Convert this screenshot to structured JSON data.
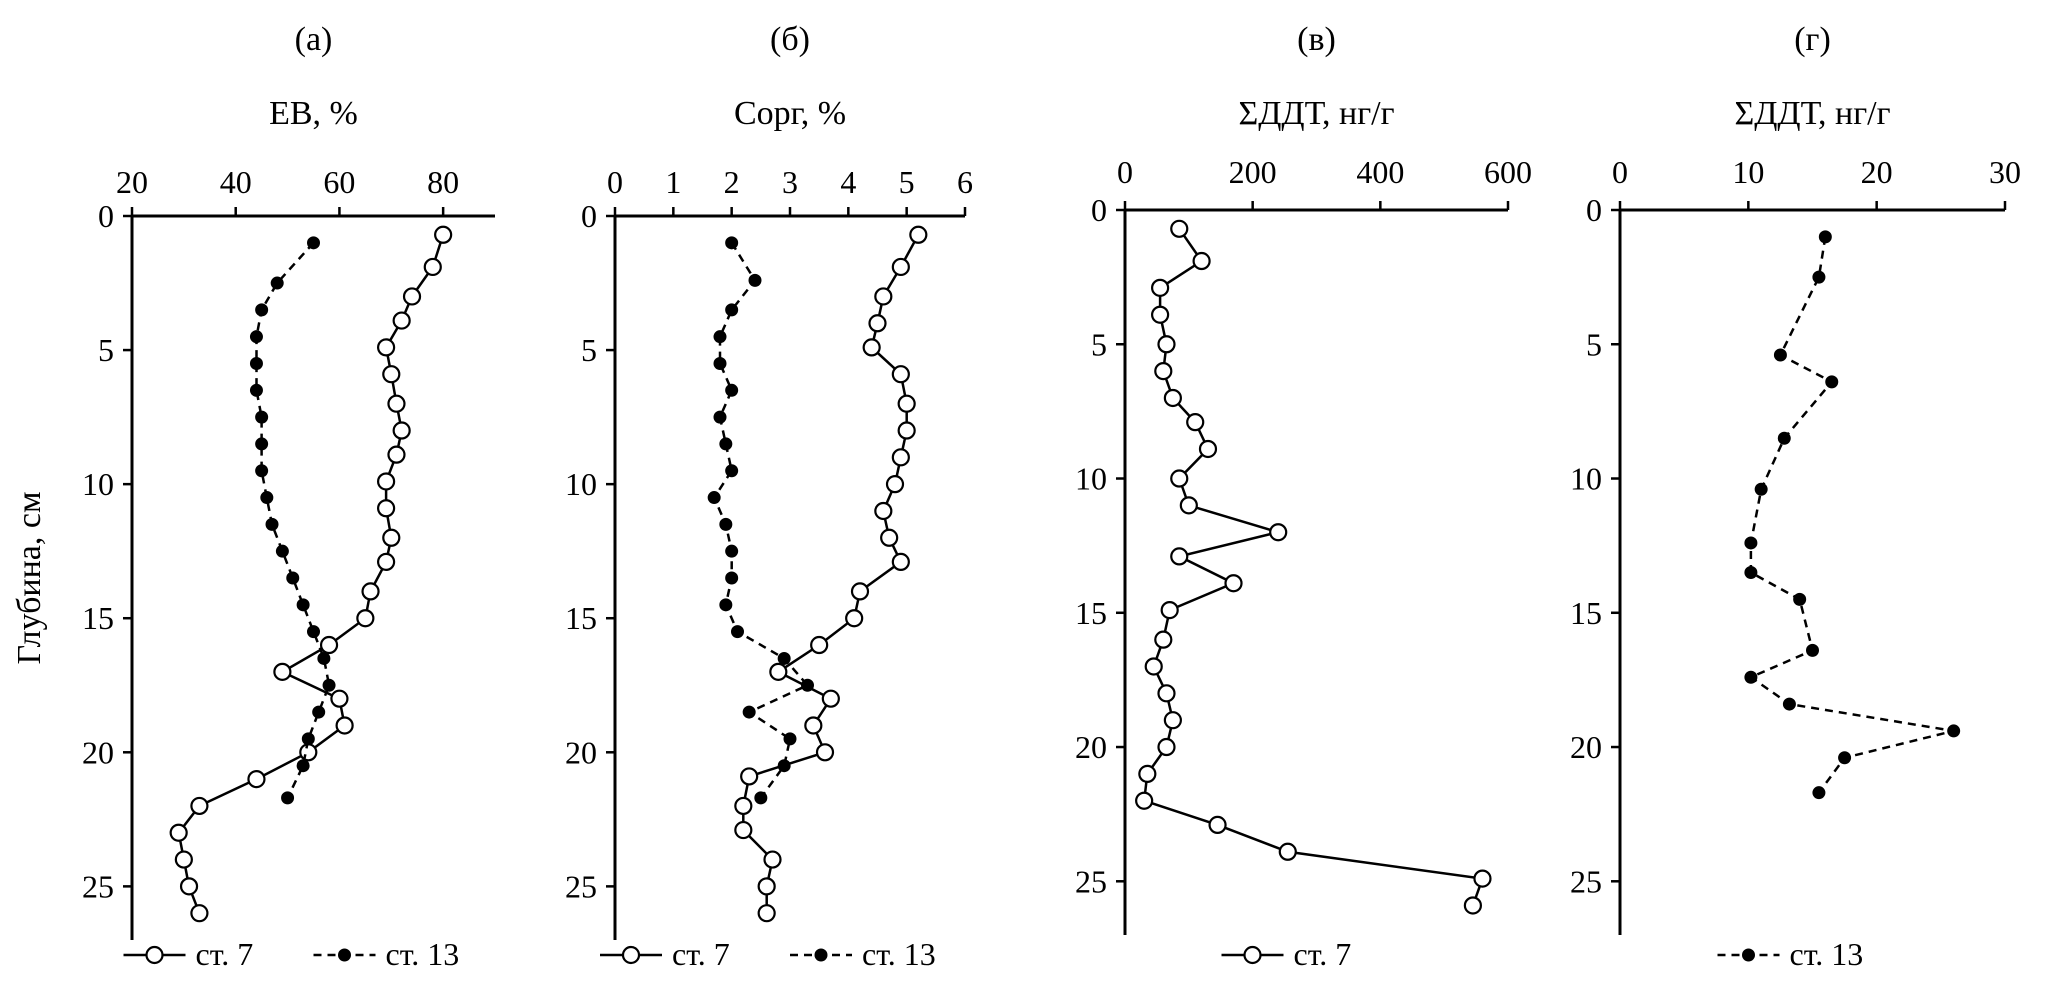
{
  "figure": {
    "ylabel": "Глубина, см",
    "legend_labels": {
      "st7": "ст. 7",
      "st13": "ст. 13"
    }
  },
  "chart_data": [
    {
      "type": "line",
      "panel": "(а)",
      "xlabel": "ЕВ, %",
      "xlim": [
        20,
        90
      ],
      "xticks": [
        20,
        40,
        60,
        80
      ],
      "ylim": [
        0,
        27
      ],
      "yticks": [
        0,
        5,
        10,
        15,
        20,
        25
      ],
      "series": [
        {
          "name": "ст. 7",
          "x": [
            80,
            78,
            74,
            72,
            69,
            70,
            71,
            72,
            71,
            69,
            69,
            70,
            69,
            66,
            65,
            58,
            49,
            60,
            61,
            54,
            44,
            33,
            29,
            30,
            31,
            33
          ],
          "y": [
            0.7,
            1.9,
            3,
            3.9,
            4.9,
            5.9,
            7,
            8,
            8.9,
            9.9,
            10.9,
            12,
            12.9,
            14,
            15,
            16,
            17,
            18,
            19,
            20,
            21,
            22,
            23,
            24,
            25,
            26
          ]
        },
        {
          "name": "ст. 13",
          "x": [
            55,
            48,
            45,
            44,
            44,
            44,
            45,
            45,
            45,
            46,
            47,
            49,
            51,
            53,
            55,
            57,
            58,
            56,
            54,
            53,
            50
          ],
          "y": [
            1,
            2.5,
            3.5,
            4.5,
            5.5,
            6.5,
            7.5,
            8.5,
            9.5,
            10.5,
            11.5,
            12.5,
            13.5,
            14.5,
            15.5,
            16.5,
            17.5,
            18.5,
            19.5,
            20.5,
            21.7
          ]
        }
      ],
      "legend_keys": [
        "st7",
        "st13"
      ]
    },
    {
      "type": "line",
      "panel": "(б)",
      "xlabel": "Сорг, %",
      "xlim": [
        0,
        6
      ],
      "xticks": [
        0,
        1,
        2,
        3,
        4,
        5,
        6
      ],
      "ylim": [
        0,
        27
      ],
      "yticks": [
        0,
        5,
        10,
        15,
        20,
        25
      ],
      "series": [
        {
          "name": "ст. 7",
          "x": [
            5.2,
            4.9,
            4.6,
            4.5,
            4.4,
            4.9,
            5.0,
            5.0,
            4.9,
            4.8,
            4.6,
            4.7,
            4.9,
            4.2,
            4.1,
            3.5,
            2.8,
            3.7,
            3.4,
            3.6,
            2.3,
            2.2,
            2.2,
            2.7,
            2.6,
            2.6
          ],
          "y": [
            0.7,
            1.9,
            3,
            4,
            4.9,
            5.9,
            7,
            8,
            9,
            10,
            11,
            12,
            12.9,
            14,
            15,
            16,
            17,
            18,
            19,
            20,
            20.9,
            22,
            22.9,
            24,
            25,
            26
          ]
        },
        {
          "name": "ст. 13",
          "x": [
            2.0,
            2.4,
            2.0,
            1.8,
            1.8,
            2.0,
            1.8,
            1.9,
            2.0,
            1.7,
            1.9,
            2.0,
            2.0,
            1.9,
            2.1,
            2.9,
            3.3,
            2.3,
            3.0,
            2.9,
            2.5
          ],
          "y": [
            1,
            2.4,
            3.5,
            4.5,
            5.5,
            6.5,
            7.5,
            8.5,
            9.5,
            10.5,
            11.5,
            12.5,
            13.5,
            14.5,
            15.5,
            16.5,
            17.5,
            18.5,
            19.5,
            20.5,
            21.7
          ]
        }
      ],
      "legend_keys": [
        "st7",
        "st13"
      ]
    },
    {
      "type": "line",
      "panel": "(в)",
      "xlabel": "ΣДДТ, нг/г",
      "xlim": [
        0,
        600
      ],
      "xticks": [
        0,
        200,
        400,
        600
      ],
      "ylim": [
        0,
        27
      ],
      "yticks": [
        0,
        5,
        10,
        15,
        20,
        25
      ],
      "series": [
        {
          "name": "ст. 7",
          "x": [
            85,
            120,
            55,
            55,
            65,
            60,
            75,
            110,
            130,
            85,
            100,
            240,
            85,
            170,
            70,
            60,
            45,
            65,
            75,
            65,
            35,
            30,
            145,
            255,
            560,
            545
          ],
          "y": [
            0.7,
            1.9,
            2.9,
            3.9,
            5,
            6,
            7,
            7.9,
            8.9,
            10,
            11,
            12,
            12.9,
            13.9,
            14.9,
            16,
            17,
            18,
            19,
            20,
            21,
            22,
            22.9,
            23.9,
            24.9,
            25.9
          ]
        }
      ],
      "legend_keys": [
        "st7"
      ]
    },
    {
      "type": "line",
      "panel": "(г)",
      "xlabel": "ΣДДТ, нг/г",
      "xlim": [
        0,
        30
      ],
      "xticks": [
        0,
        10,
        20,
        30
      ],
      "ylim": [
        0,
        27
      ],
      "yticks": [
        0,
        5,
        10,
        15,
        20,
        25
      ],
      "series": [
        {
          "name": "ст. 13",
          "x": [
            16,
            15.5,
            12.5,
            16.5,
            12.8,
            11,
            10.2,
            10.2,
            14,
            15,
            10.2,
            13.2,
            26,
            17.5,
            15.5
          ],
          "y": [
            1,
            2.5,
            5.4,
            6.4,
            8.5,
            10.4,
            12.4,
            13.5,
            14.5,
            16.4,
            17.4,
            18.4,
            19.4,
            20.4,
            21.7
          ]
        }
      ],
      "legend_keys": [
        "st13"
      ]
    }
  ]
}
